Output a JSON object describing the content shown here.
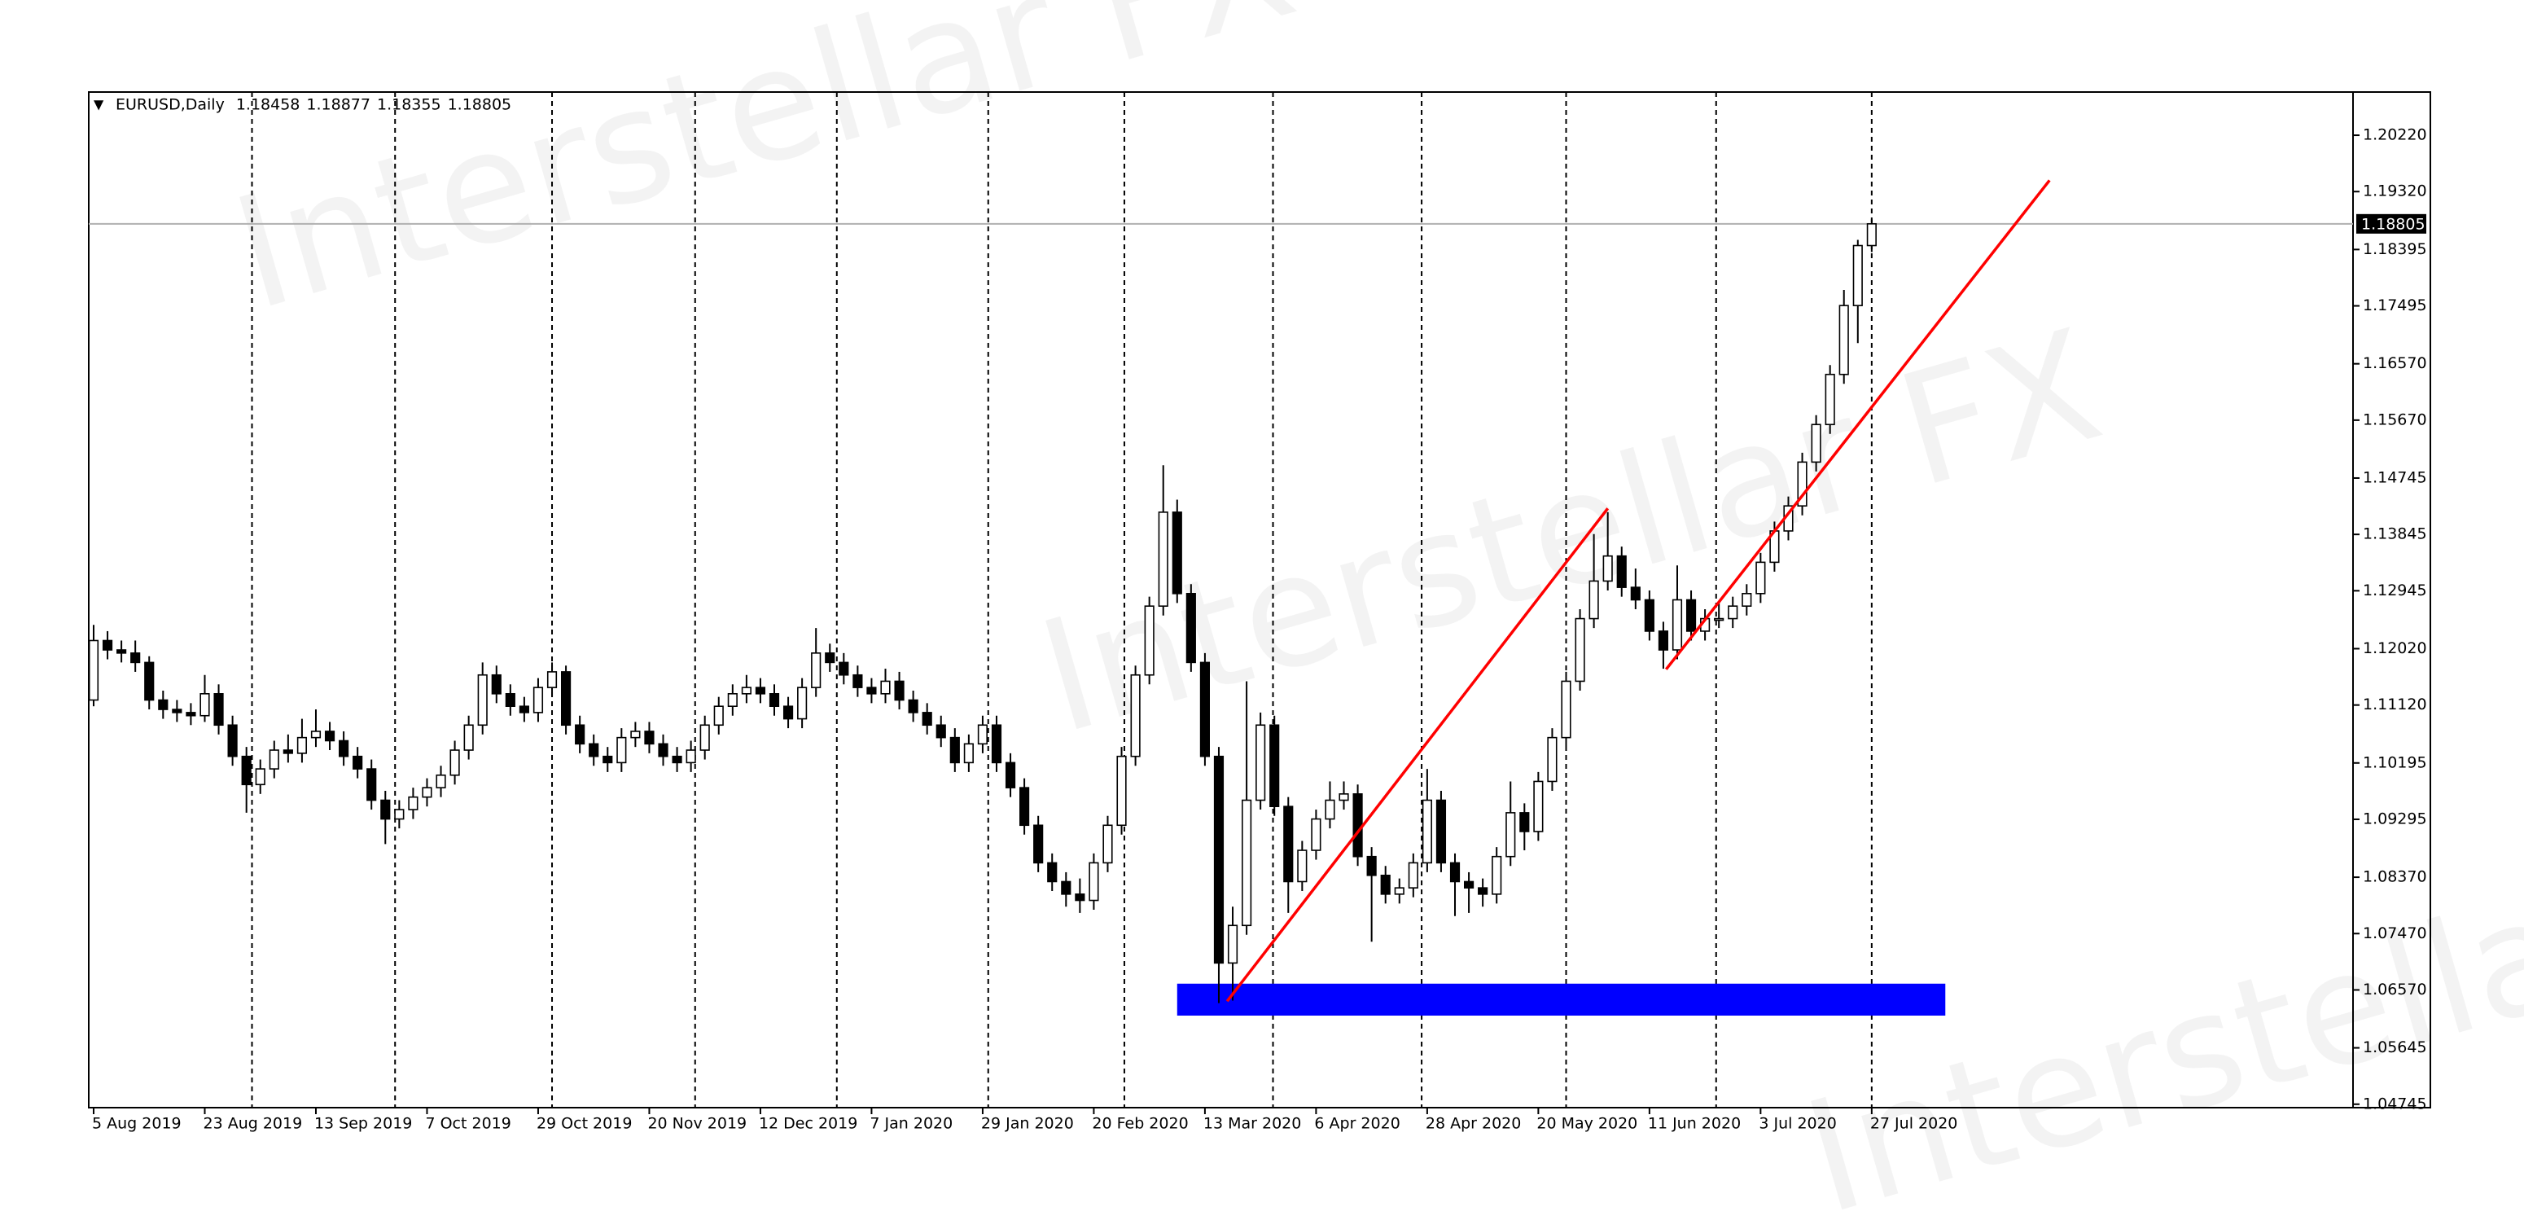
{
  "chart_data": {
    "type": "candlestick",
    "symbol": "EURUSD,Daily",
    "watermark": "Interstellar FX",
    "categories": [
      "5 Aug 2019",
      null,
      null,
      null,
      null,
      null,
      null,
      null,
      "23 Aug 2019",
      null,
      null,
      null,
      null,
      null,
      null,
      null,
      "13 Sep 2019",
      null,
      null,
      null,
      null,
      null,
      null,
      null,
      "7 Oct 2019",
      null,
      null,
      null,
      null,
      null,
      null,
      null,
      "29 Oct 2019",
      null,
      null,
      null,
      null,
      null,
      null,
      null,
      "20 Nov 2019",
      null,
      null,
      null,
      null,
      null,
      null,
      null,
      "12 Dec 2019",
      null,
      null,
      null,
      null,
      null,
      null,
      null,
      "7 Jan 2020",
      null,
      null,
      null,
      null,
      null,
      null,
      null,
      "29 Jan 2020",
      null,
      null,
      null,
      null,
      null,
      null,
      null,
      "20 Feb 2020",
      null,
      null,
      null,
      null,
      null,
      null,
      null,
      "13 Mar 2020",
      null,
      null,
      null,
      null,
      null,
      null,
      null,
      "6 Apr 2020",
      null,
      null,
      null,
      null,
      null,
      null,
      null,
      "28 Apr 2020",
      null,
      null,
      null,
      null,
      null,
      null,
      null,
      "20 May 2020",
      null,
      null,
      null,
      null,
      null,
      null,
      null,
      "11 Jun 2020",
      null,
      null,
      null,
      null,
      null,
      null,
      null,
      "3 Jul 2020",
      null,
      null,
      null,
      null,
      null,
      null,
      null,
      "27 Jul 2020"
    ],
    "candles": [
      [
        1.112,
        1.124,
        1.111,
        1.1215
      ],
      [
        1.1215,
        1.123,
        1.1185,
        1.12
      ],
      [
        1.12,
        1.1215,
        1.118,
        1.1195
      ],
      [
        1.1195,
        1.1215,
        1.1165,
        1.118
      ],
      [
        1.118,
        1.119,
        1.1105,
        1.112
      ],
      [
        1.112,
        1.1135,
        1.109,
        1.1105
      ],
      [
        1.1105,
        1.112,
        1.1085,
        1.11
      ],
      [
        1.11,
        1.1115,
        1.108,
        1.1095
      ],
      [
        1.1095,
        1.116,
        1.1085,
        1.113
      ],
      [
        1.113,
        1.1145,
        1.1065,
        1.108
      ],
      [
        1.108,
        1.1095,
        1.1015,
        1.103
      ],
      [
        1.103,
        1.1045,
        1.094,
        1.0985
      ],
      [
        1.0985,
        1.1025,
        1.097,
        1.101
      ],
      [
        1.101,
        1.1055,
        1.0995,
        1.104
      ],
      [
        1.104,
        1.1065,
        1.102,
        1.1035
      ],
      [
        1.1035,
        1.109,
        1.102,
        1.106
      ],
      [
        1.106,
        1.1105,
        1.1045,
        1.107
      ],
      [
        1.107,
        1.1085,
        1.104,
        1.1055
      ],
      [
        1.1055,
        1.107,
        1.1015,
        1.103
      ],
      [
        1.103,
        1.1045,
        1.0995,
        1.101
      ],
      [
        1.101,
        1.1025,
        1.0945,
        1.096
      ],
      [
        1.096,
        1.0975,
        1.089,
        1.093
      ],
      [
        1.093,
        1.096,
        1.0915,
        1.0945
      ],
      [
        1.0945,
        1.098,
        1.093,
        1.0965
      ],
      [
        1.0965,
        1.0995,
        1.095,
        1.098
      ],
      [
        1.098,
        1.1015,
        1.0965,
        1.1
      ],
      [
        1.1,
        1.1055,
        1.0985,
        1.104
      ],
      [
        1.104,
        1.1095,
        1.1025,
        1.108
      ],
      [
        1.108,
        1.118,
        1.1065,
        1.116
      ],
      [
        1.116,
        1.1175,
        1.1115,
        1.113
      ],
      [
        1.113,
        1.1145,
        1.1095,
        1.111
      ],
      [
        1.111,
        1.1125,
        1.1085,
        1.11
      ],
      [
        1.11,
        1.1155,
        1.1085,
        1.114
      ],
      [
        1.114,
        1.118,
        1.1125,
        1.1165
      ],
      [
        1.1165,
        1.1175,
        1.1065,
        1.108
      ],
      [
        1.108,
        1.1095,
        1.1035,
        1.105
      ],
      [
        1.105,
        1.1065,
        1.1015,
        1.103
      ],
      [
        1.103,
        1.1045,
        1.1005,
        1.102
      ],
      [
        1.102,
        1.1075,
        1.1005,
        1.106
      ],
      [
        1.106,
        1.1085,
        1.1045,
        1.107
      ],
      [
        1.107,
        1.1085,
        1.1035,
        1.105
      ],
      [
        1.105,
        1.1065,
        1.1015,
        1.103
      ],
      [
        1.103,
        1.1045,
        1.1005,
        1.102
      ],
      [
        1.102,
        1.1055,
        1.1005,
        1.104
      ],
      [
        1.104,
        1.1095,
        1.1025,
        1.108
      ],
      [
        1.108,
        1.1125,
        1.1065,
        1.111
      ],
      [
        1.111,
        1.1145,
        1.1095,
        1.113
      ],
      [
        1.113,
        1.116,
        1.1115,
        1.114
      ],
      [
        1.114,
        1.1155,
        1.1115,
        1.113
      ],
      [
        1.113,
        1.1145,
        1.1095,
        1.111
      ],
      [
        1.111,
        1.1125,
        1.1075,
        1.109
      ],
      [
        1.109,
        1.1155,
        1.1075,
        1.114
      ],
      [
        1.114,
        1.1235,
        1.1125,
        1.1195
      ],
      [
        1.1195,
        1.121,
        1.1165,
        1.118
      ],
      [
        1.118,
        1.1195,
        1.1145,
        1.116
      ],
      [
        1.116,
        1.1175,
        1.1125,
        1.114
      ],
      [
        1.114,
        1.1155,
        1.1115,
        1.113
      ],
      [
        1.113,
        1.117,
        1.1115,
        1.115
      ],
      [
        1.115,
        1.1165,
        1.1105,
        1.112
      ],
      [
        1.112,
        1.1135,
        1.1085,
        1.11
      ],
      [
        1.11,
        1.1115,
        1.1065,
        1.108
      ],
      [
        1.108,
        1.1095,
        1.1045,
        1.106
      ],
      [
        1.106,
        1.1075,
        1.1005,
        1.102
      ],
      [
        1.102,
        1.1065,
        1.1005,
        1.105
      ],
      [
        1.105,
        1.1095,
        1.1035,
        1.108
      ],
      [
        1.108,
        1.1095,
        1.1005,
        1.102
      ],
      [
        1.102,
        1.1035,
        1.0965,
        1.098
      ],
      [
        1.098,
        1.0995,
        1.0905,
        1.092
      ],
      [
        1.092,
        1.0935,
        1.0845,
        1.086
      ],
      [
        1.086,
        1.0875,
        1.0815,
        1.083
      ],
      [
        1.083,
        1.0845,
        1.079,
        1.081
      ],
      [
        1.081,
        1.0835,
        1.078,
        1.08
      ],
      [
        1.08,
        1.0875,
        1.0785,
        1.086
      ],
      [
        1.086,
        1.0935,
        1.0845,
        1.092
      ],
      [
        1.092,
        1.1045,
        1.0905,
        1.103
      ],
      [
        1.103,
        1.1175,
        1.1015,
        1.116
      ],
      [
        1.116,
        1.1285,
        1.1145,
        1.127
      ],
      [
        1.127,
        1.1495,
        1.1255,
        1.142
      ],
      [
        1.142,
        1.144,
        1.1275,
        1.129
      ],
      [
        1.129,
        1.1305,
        1.1165,
        1.118
      ],
      [
        1.118,
        1.1195,
        1.1015,
        1.103
      ],
      [
        1.103,
        1.1045,
        1.0636,
        1.07
      ],
      [
        1.07,
        1.079,
        1.064,
        1.076
      ],
      [
        1.076,
        1.115,
        1.0745,
        1.096
      ],
      [
        1.096,
        1.11,
        1.0945,
        1.108
      ],
      [
        1.108,
        1.1095,
        1.0935,
        1.095
      ],
      [
        1.095,
        1.0965,
        1.078,
        1.083
      ],
      [
        1.083,
        1.0895,
        1.0815,
        1.088
      ],
      [
        1.088,
        1.0945,
        1.0865,
        1.093
      ],
      [
        1.093,
        1.099,
        1.0915,
        1.096
      ],
      [
        1.096,
        1.099,
        1.0945,
        1.097
      ],
      [
        1.097,
        1.0985,
        1.0855,
        1.087
      ],
      [
        1.087,
        1.0885,
        1.0734,
        1.084
      ],
      [
        1.084,
        1.0855,
        1.0795,
        1.081
      ],
      [
        1.081,
        1.0835,
        1.0795,
        1.082
      ],
      [
        1.082,
        1.0875,
        1.0805,
        1.086
      ],
      [
        1.086,
        1.101,
        1.0845,
        1.096
      ],
      [
        1.096,
        1.0975,
        1.0845,
        1.086
      ],
      [
        1.086,
        1.0875,
        1.0775,
        1.083
      ],
      [
        1.083,
        1.0845,
        1.078,
        1.082
      ],
      [
        1.082,
        1.0835,
        1.079,
        1.081
      ],
      [
        1.081,
        1.0885,
        1.0795,
        1.087
      ],
      [
        1.087,
        1.099,
        1.0855,
        1.094
      ],
      [
        1.094,
        1.0955,
        1.088,
        1.091
      ],
      [
        1.091,
        1.1005,
        1.0895,
        1.099
      ],
      [
        1.099,
        1.1075,
        1.0975,
        1.106
      ],
      [
        1.106,
        1.1165,
        1.1045,
        1.115
      ],
      [
        1.115,
        1.1265,
        1.1135,
        1.125
      ],
      [
        1.125,
        1.1385,
        1.1235,
        1.131
      ],
      [
        1.131,
        1.142,
        1.1295,
        1.135
      ],
      [
        1.135,
        1.1365,
        1.1285,
        1.13
      ],
      [
        1.13,
        1.133,
        1.1265,
        1.128
      ],
      [
        1.128,
        1.1295,
        1.1215,
        1.123
      ],
      [
        1.123,
        1.1245,
        1.117,
        1.12
      ],
      [
        1.12,
        1.1335,
        1.1185,
        1.128
      ],
      [
        1.128,
        1.1295,
        1.1215,
        1.123
      ],
      [
        1.123,
        1.1265,
        1.1215,
        1.125
      ],
      [
        1.125,
        1.1275,
        1.1235,
        1.125
      ],
      [
        1.125,
        1.1285,
        1.1235,
        1.127
      ],
      [
        1.127,
        1.1305,
        1.1255,
        1.129
      ],
      [
        1.129,
        1.1355,
        1.1275,
        1.134
      ],
      [
        1.134,
        1.1405,
        1.1325,
        1.139
      ],
      [
        1.139,
        1.1445,
        1.1375,
        1.143
      ],
      [
        1.143,
        1.1515,
        1.1415,
        1.15
      ],
      [
        1.15,
        1.1575,
        1.1485,
        1.156
      ],
      [
        1.156,
        1.1655,
        1.1545,
        1.164
      ],
      [
        1.164,
        1.1775,
        1.1625,
        1.175
      ],
      [
        1.175,
        1.1855,
        1.169,
        1.18458
      ],
      [
        1.18458,
        1.18877,
        1.18355,
        1.18805
      ]
    ],
    "up_color": "#ffffff",
    "down_color": "#000000",
    "ylim": [
      1.0469,
      1.2091
    ],
    "yticks": [
      {
        "value": 1.2022,
        "label": "1.20220"
      },
      {
        "value": 1.1932,
        "label": "1.19320"
      },
      1.18395,
      1.17495,
      {
        "value": 1.1657,
        "label": "1.16570"
      },
      {
        "value": 1.1567,
        "label": "1.15670"
      },
      1.14745,
      1.13845,
      1.12945,
      {
        "value": 1.1202,
        "label": "1.12020"
      },
      {
        "value": 1.1112,
        "label": "1.11120"
      },
      1.10195,
      1.09295,
      {
        "value": 1.0837,
        "label": "1.08370"
      },
      {
        "value": 1.0747,
        "label": "1.07470"
      },
      {
        "value": 1.0657,
        "label": "1.06570"
      },
      1.05645,
      1.04745
    ],
    "separators": [
      11.4,
      21.7,
      33,
      43.3,
      53.5,
      64.4,
      74.2,
      84.9,
      95.6,
      106,
      116.8,
      128
    ],
    "trendlines": [
      {
        "x": [
          81.6,
          109
        ],
        "y": [
          1.0639,
          1.1426
        ],
        "color": "#ff0000"
      },
      {
        "x": [
          113.2,
          140.8
        ],
        "y": [
          1.1169,
          1.195
        ],
        "color": "#ff0000"
      }
    ],
    "rectangles": [
      {
        "x": [
          78,
          133.3
        ],
        "y": [
          1.0616,
          1.0667
        ],
        "color": "#0000ff"
      }
    ]
  }
}
